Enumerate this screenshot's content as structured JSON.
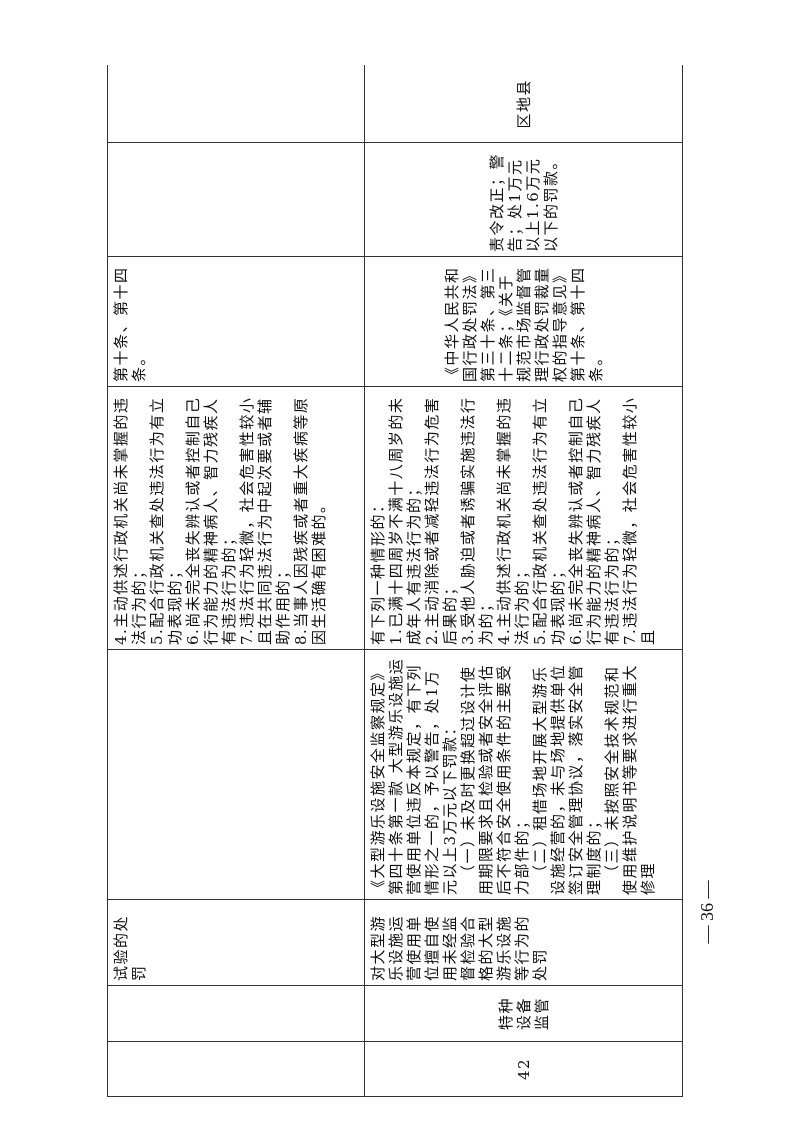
{
  "rows": [
    {
      "number": "",
      "category": "",
      "item": "试验的处罚",
      "legal_basis": [],
      "circumstances": [
        "4.主动供述行政机关尚未掌握的违法行为的；",
        "5.配合行政机关查处违法行为有立功表现的；",
        "6.尚未完全丧失辨认或者控制自己行为能力的精神病人、智力残疾人有违法行为的；",
        "7.违法行为轻微，社会危害性较小且在共同违法行为中起次要或者辅助作用的；",
        "8.当事人因残疾或者重大疾病等原因生活确有困难的。"
      ],
      "mitigation_basis": "第十条、第十四条。",
      "penalty": "",
      "body": ""
    },
    {
      "number": "42",
      "category": "特种设备监管",
      "item": "对大型游乐设施运营使用单位擅自使用未经监督检验合格的大型游乐设施等行为的处罚",
      "legal_basis": [
        "《大型游乐设施安全监察规定》第四十条第一款 大型游乐设施运营使用单位违反本规定，有下列情形之一的，予以警告，处1万元以上3万元以下罚款：",
        "（一）未及时更换超过设计使用期限要求且检验或者安全评估后不符合安全使用条件的主要受力部件的；",
        "（二）租借场地开展大型游乐设施经营的，未与场地提供单位签订安全管理协议，落实安全管理制度的；",
        "（三）未按照安全技术规范和使用维护说明书等要求进行重大修理"
      ],
      "circumstances": [
        "有下列一种情形的：",
        "1.已满十四周岁不满十八周岁的未成年人有违法行为的；",
        "2.主动消除或者减轻违法行为危害后果的；",
        "3.受他人胁迫或者诱骗实施违法行为的；",
        "4.主动供述行政机关尚未掌握的违法行为的；",
        "5.配合行政机关查处违法行为有立功表现的；",
        "6.尚未完全丧失辨认或者控制自己行为能力的精神病人、智力残疾人有违法行为的；",
        "7.违法行为轻微，社会危害性较小且"
      ],
      "mitigation_basis": "《中华人民共和国行政处罚法》第三十条、第三十二条；《关于规范市场监督管理行政处罚裁量权的指导意见》第十条、第十四条。",
      "penalty": "责令改正；警告；处1万元以上1.6万元以下的罚款。",
      "body": "区地县"
    }
  ],
  "page_number": "— 36 —"
}
